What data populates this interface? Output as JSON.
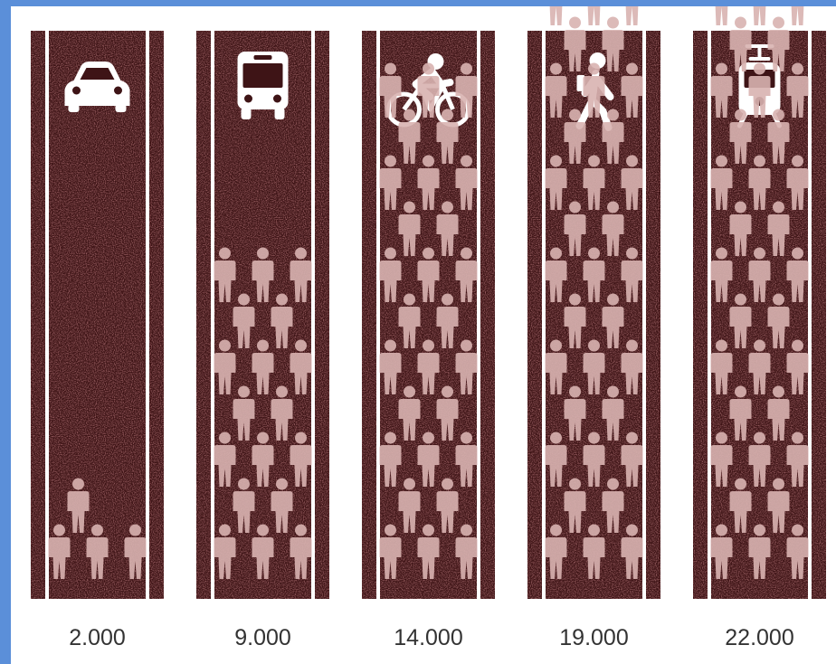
{
  "chart_data": {
    "type": "bar",
    "categories": [
      "car",
      "bus",
      "bicycle",
      "pedestrian",
      "tram"
    ],
    "values": [
      2000,
      9000,
      14000,
      19000,
      22000
    ],
    "value_labels": [
      "2.000",
      "9.000",
      "14.000",
      "19.000",
      "22.000"
    ],
    "icons": [
      "car-icon",
      "bus-icon",
      "bicycle-icon",
      "pedestrian-icon",
      "tram-icon"
    ],
    "unit_per_person_icon": 500,
    "ylim": [
      0,
      22000
    ],
    "grid": false,
    "legend": "none"
  },
  "colors": {
    "page_border": "#5b8fd9",
    "background": "#ffffff",
    "lane": "#3e1416",
    "lane_speckle": "#6a2a2c",
    "lane_line": "#ffffff",
    "person": "#d9b3b1",
    "label": "#333333"
  }
}
